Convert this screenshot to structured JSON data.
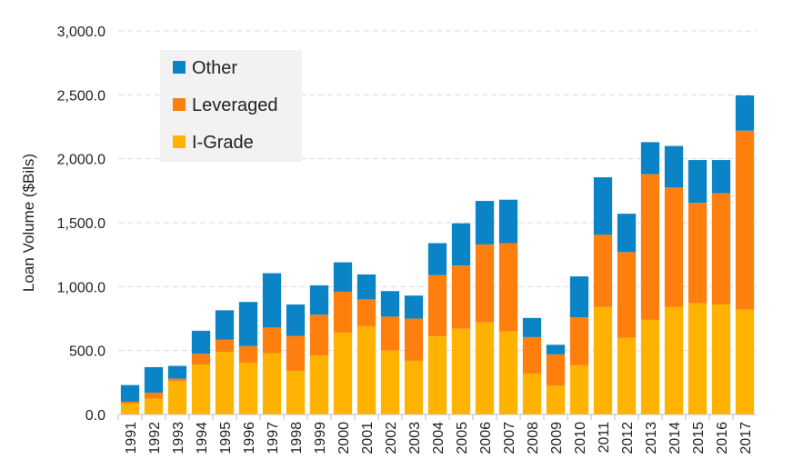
{
  "chart_data": {
    "type": "bar",
    "stacked": true,
    "ylabel": "Loan Volume ($Bils)",
    "xlabel": "",
    "ylim": [
      0,
      3000
    ],
    "yticks": [
      "0.0",
      "500.0",
      "1,000.0",
      "1,500.0",
      "2,000.0",
      "2,500.0",
      "3,000.0"
    ],
    "ytick_values": [
      0,
      500,
      1000,
      1500,
      2000,
      2500,
      3000
    ],
    "grid": true,
    "legend_position": "top-left",
    "categories": [
      "1991",
      "1992",
      "1993",
      "1994",
      "1995",
      "1996",
      "1997",
      "1998",
      "1999",
      "2000",
      "2001",
      "2002",
      "2003",
      "2004",
      "2005",
      "2006",
      "2007",
      "2008",
      "2009",
      "2010",
      "2011",
      "2012",
      "2013",
      "2014",
      "2015",
      "2016",
      "2017"
    ],
    "series": [
      {
        "name": "I-Grade",
        "color": "#FFB300",
        "values": [
          85,
          125,
          260,
          390,
          490,
          405,
          480,
          340,
          460,
          640,
          690,
          500,
          420,
          610,
          670,
          720,
          650,
          320,
          225,
          385,
          840,
          600,
          740,
          840,
          870,
          860,
          820
        ]
      },
      {
        "name": "Leveraged",
        "color": "#FF7F0E",
        "values": [
          15,
          45,
          20,
          85,
          95,
          130,
          200,
          275,
          320,
          320,
          210,
          265,
          330,
          480,
          495,
          610,
          690,
          285,
          245,
          375,
          565,
          670,
          1140,
          935,
          785,
          870,
          1400
        ]
      },
      {
        "name": "Other",
        "color": "#0A84C6",
        "values": [
          130,
          200,
          100,
          180,
          230,
          345,
          425,
          245,
          230,
          230,
          195,
          200,
          180,
          250,
          330,
          340,
          340,
          150,
          75,
          320,
          450,
          300,
          250,
          325,
          335,
          260,
          275
        ]
      }
    ],
    "legend_order": [
      "Other",
      "Leveraged",
      "I-Grade"
    ]
  }
}
